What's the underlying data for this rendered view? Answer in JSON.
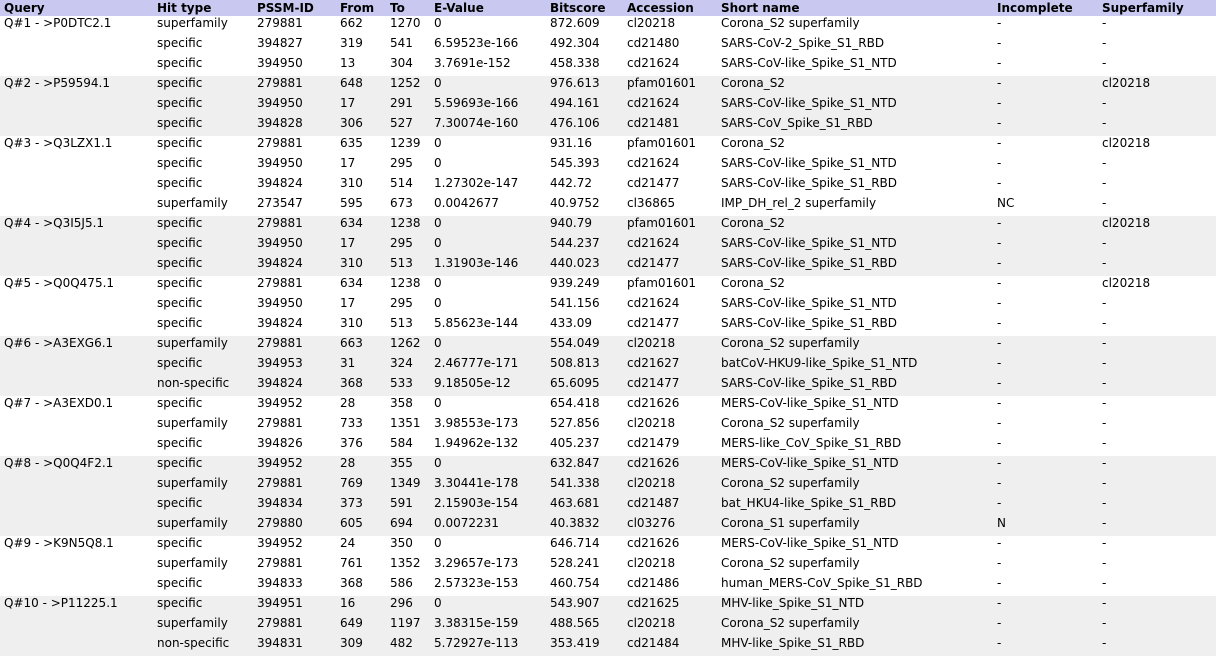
{
  "columns": [
    "Query",
    "Hit type",
    "PSSM-ID",
    "From",
    "To",
    "E-Value",
    "Bitscore",
    "Accession",
    "Short name",
    "Incomplete",
    "Superfamily"
  ],
  "groups": [
    {
      "query": "Q#1 - >P0DTC2.1",
      "rows": [
        [
          "superfamily",
          "279881",
          "662",
          "1270",
          "0",
          "872.609",
          "cl20218",
          "Corona_S2 superfamily",
          "-",
          "-"
        ],
        [
          "specific",
          "394827",
          "319",
          "541",
          "6.59523e-166",
          "492.304",
          "cd21480",
          "SARS-CoV-2_Spike_S1_RBD",
          "-",
          "-"
        ],
        [
          "specific",
          "394950",
          "13",
          "304",
          "3.7691e-152",
          "458.338",
          "cd21624",
          "SARS-CoV-like_Spike_S1_NTD",
          "-",
          "-"
        ]
      ]
    },
    {
      "query": "Q#2 - >P59594.1",
      "rows": [
        [
          "specific",
          "279881",
          "648",
          "1252",
          "0",
          "976.613",
          "pfam01601",
          "Corona_S2",
          "-",
          "cl20218"
        ],
        [
          "specific",
          "394950",
          "17",
          "291",
          "5.59693e-166",
          "494.161",
          "cd21624",
          "SARS-CoV-like_Spike_S1_NTD",
          "-",
          "-"
        ],
        [
          "specific",
          "394828",
          "306",
          "527",
          "7.30074e-160",
          "476.106",
          "cd21481",
          "SARS-CoV_Spike_S1_RBD",
          "-",
          "-"
        ]
      ]
    },
    {
      "query": "Q#3 - >Q3LZX1.1",
      "rows": [
        [
          "specific",
          "279881",
          "635",
          "1239",
          "0",
          "931.16",
          "pfam01601",
          "Corona_S2",
          "-",
          "cl20218"
        ],
        [
          "specific",
          "394950",
          "17",
          "295",
          "0",
          "545.393",
          "cd21624",
          "SARS-CoV-like_Spike_S1_NTD",
          "-",
          "-"
        ],
        [
          "specific",
          "394824",
          "310",
          "514",
          "1.27302e-147",
          "442.72",
          "cd21477",
          "SARS-CoV-like_Spike_S1_RBD",
          "-",
          "-"
        ],
        [
          "superfamily",
          "273547",
          "595",
          "673",
          "0.0042677",
          "40.9752",
          "cl36865",
          "IMP_DH_rel_2 superfamily",
          "NC",
          "-"
        ]
      ]
    },
    {
      "query": "Q#4 - >Q3I5J5.1",
      "rows": [
        [
          "specific",
          "279881",
          "634",
          "1238",
          "0",
          "940.79",
          "pfam01601",
          "Corona_S2",
          "-",
          "cl20218"
        ],
        [
          "specific",
          "394950",
          "17",
          "295",
          "0",
          "544.237",
          "cd21624",
          "SARS-CoV-like_Spike_S1_NTD",
          "-",
          "-"
        ],
        [
          "specific",
          "394824",
          "310",
          "513",
          "1.31903e-146",
          "440.023",
          "cd21477",
          "SARS-CoV-like_Spike_S1_RBD",
          "-",
          "-"
        ]
      ]
    },
    {
      "query": "Q#5 - >Q0Q475.1",
      "rows": [
        [
          "specific",
          "279881",
          "634",
          "1238",
          "0",
          "939.249",
          "pfam01601",
          "Corona_S2",
          "-",
          "cl20218"
        ],
        [
          "specific",
          "394950",
          "17",
          "295",
          "0",
          "541.156",
          "cd21624",
          "SARS-CoV-like_Spike_S1_NTD",
          "-",
          "-"
        ],
        [
          "specific",
          "394824",
          "310",
          "513",
          "5.85623e-144",
          "433.09",
          "cd21477",
          "SARS-CoV-like_Spike_S1_RBD",
          "-",
          "-"
        ]
      ]
    },
    {
      "query": "Q#6 - >A3EXG6.1",
      "rows": [
        [
          "superfamily",
          "279881",
          "663",
          "1262",
          "0",
          "554.049",
          "cl20218",
          "Corona_S2 superfamily",
          "-",
          "-"
        ],
        [
          "specific",
          "394953",
          "31",
          "324",
          "2.46777e-171",
          "508.813",
          "cd21627",
          "batCoV-HKU9-like_Spike_S1_NTD",
          "-",
          "-"
        ],
        [
          "non-specific",
          "394824",
          "368",
          "533",
          "9.18505e-12",
          "65.6095",
          "cd21477",
          "SARS-CoV-like_Spike_S1_RBD",
          "-",
          "-"
        ]
      ]
    },
    {
      "query": "Q#7 - >A3EXD0.1",
      "rows": [
        [
          "specific",
          "394952",
          "28",
          "358",
          "0",
          "654.418",
          "cd21626",
          "MERS-CoV-like_Spike_S1_NTD",
          "-",
          "-"
        ],
        [
          "superfamily",
          "279881",
          "733",
          "1351",
          "3.98553e-173",
          "527.856",
          "cl20218",
          "Corona_S2 superfamily",
          "-",
          "-"
        ],
        [
          "specific",
          "394826",
          "376",
          "584",
          "1.94962e-132",
          "405.237",
          "cd21479",
          "MERS-like_CoV_Spike_S1_RBD",
          "-",
          "-"
        ]
      ]
    },
    {
      "query": "Q#8 - >Q0Q4F2.1",
      "rows": [
        [
          "specific",
          "394952",
          "28",
          "355",
          "0",
          "632.847",
          "cd21626",
          "MERS-CoV-like_Spike_S1_NTD",
          "-",
          "-"
        ],
        [
          "superfamily",
          "279881",
          "769",
          "1349",
          "3.30441e-178",
          "541.338",
          "cl20218",
          "Corona_S2 superfamily",
          "-",
          "-"
        ],
        [
          "specific",
          "394834",
          "373",
          "591",
          "2.15903e-154",
          "463.681",
          "cd21487",
          "bat_HKU4-like_Spike_S1_RBD",
          "-",
          "-"
        ],
        [
          "superfamily",
          "279880",
          "605",
          "694",
          "0.0072231",
          "40.3832",
          "cl03276",
          "Corona_S1 superfamily",
          "N",
          "-"
        ]
      ]
    },
    {
      "query": "Q#9 - >K9N5Q8.1",
      "rows": [
        [
          "specific",
          "394952",
          "24",
          "350",
          "0",
          "646.714",
          "cd21626",
          "MERS-CoV-like_Spike_S1_NTD",
          "-",
          "-"
        ],
        [
          "superfamily",
          "279881",
          "761",
          "1352",
          "3.29657e-173",
          "528.241",
          "cl20218",
          "Corona_S2 superfamily",
          "-",
          "-"
        ],
        [
          "specific",
          "394833",
          "368",
          "586",
          "2.57323e-153",
          "460.754",
          "cd21486",
          "human_MERS-CoV_Spike_S1_RBD",
          "-",
          "-"
        ]
      ]
    },
    {
      "query": "Q#10 - >P11225.1",
      "rows": [
        [
          "specific",
          "394951",
          "16",
          "296",
          "0",
          "543.907",
          "cd21625",
          "MHV-like_Spike_S1_NTD",
          "-",
          "-"
        ],
        [
          "superfamily",
          "279881",
          "649",
          "1197",
          "3.38315e-159",
          "488.565",
          "cl20218",
          "Corona_S2 superfamily",
          "-",
          "-"
        ],
        [
          "non-specific",
          "394831",
          "309",
          "482",
          "5.72927e-113",
          "353.419",
          "cd21484",
          "MHV-like_Spike_S1_RBD",
          "-",
          "-"
        ]
      ]
    }
  ]
}
